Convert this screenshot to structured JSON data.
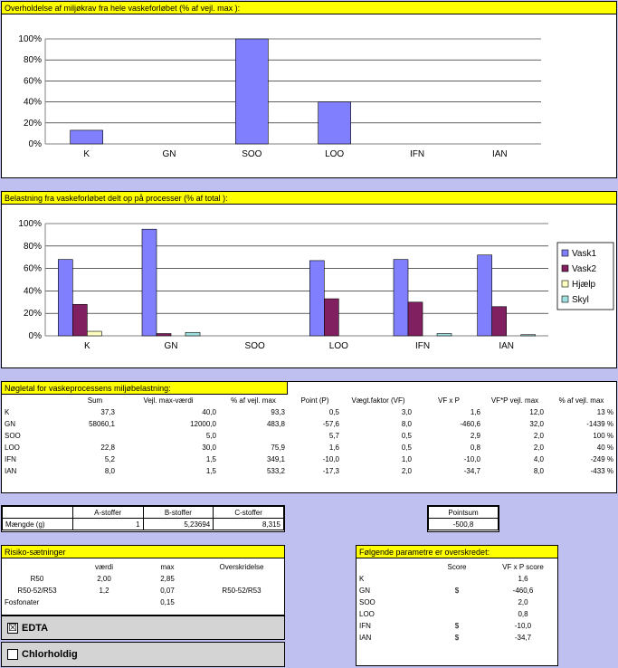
{
  "chart1": {
    "title": "Overholdelse af miljøkrav fra hele vaskeforløbet (% af vejl. max ):"
  },
  "chart2": {
    "title": "Belastning fra vaskeforløbet delt op på processer (% af total ):"
  },
  "chart_data": [
    {
      "type": "bar",
      "title": "Overholdelse af miljøkrav fra hele vaskeforløbet (% af vejl. max ):",
      "categories": [
        "K",
        "GN",
        "SOO",
        "LOO",
        "IFN",
        "IAN"
      ],
      "values": [
        13,
        0,
        100,
        40,
        0,
        0
      ],
      "ylim": [
        0,
        100
      ],
      "yticks": [
        "0%",
        "20%",
        "40%",
        "60%",
        "80%",
        "100%"
      ],
      "color": "#8080ff",
      "grid": true
    },
    {
      "type": "bar",
      "title": "Belastning fra vaskeforløbet delt op på processer (% af total ):",
      "categories": [
        "K",
        "GN",
        "SOO",
        "LOO",
        "IFN",
        "IAN"
      ],
      "ylim": [
        0,
        100
      ],
      "yticks": [
        "0%",
        "20%",
        "40%",
        "60%",
        "80%",
        "100%"
      ],
      "legend": "right",
      "grid": true,
      "series": [
        {
          "name": "Vask1",
          "color": "#8080ff",
          "values": [
            68,
            95,
            0,
            67,
            68,
            72
          ]
        },
        {
          "name": "Vask2",
          "color": "#802060",
          "values": [
            28,
            2,
            0,
            33,
            30,
            26
          ]
        },
        {
          "name": "Hjælp",
          "color": "#ffffc0",
          "values": [
            4,
            0,
            0,
            0,
            0,
            0
          ]
        },
        {
          "name": "Skyl",
          "color": "#a0e0e0",
          "values": [
            0,
            3,
            0,
            0,
            2,
            1
          ]
        }
      ]
    }
  ],
  "noegletal": {
    "title": "Nøgletal for vaskeprocessens miljøbelastning:",
    "headers": [
      "",
      "Sum",
      "Vejl. max-værdi",
      "% af vejl. max",
      "Point (P)",
      "Vægt.faktor (VF)",
      "VF x P",
      "VF*P vejl. max",
      "% af vejl. max"
    ],
    "rows": [
      [
        "K",
        "37,3",
        "40,0",
        "93,3",
        "0,5",
        "3,0",
        "1,6",
        "12,0",
        "13 %"
      ],
      [
        "GN",
        "58060,1",
        "12000,0",
        "483,8",
        "-57,6",
        "8,0",
        "-460,6",
        "32,0",
        "-1439 %"
      ],
      [
        "SOO",
        "",
        "5,0",
        "",
        "5,7",
        "0,5",
        "2,9",
        "2,0",
        "100 %"
      ],
      [
        "LOO",
        "22,8",
        "30,0",
        "75,9",
        "1,6",
        "0,5",
        "0,8",
        "2,0",
        "40 %"
      ],
      [
        "IFN",
        "5,2",
        "1,5",
        "349,1",
        "-10,0",
        "1,0",
        "-10,0",
        "4,0",
        "-249 %"
      ],
      [
        "IAN",
        "8,0",
        "1,5",
        "533,2",
        "-17,3",
        "2,0",
        "-34,7",
        "8,0",
        "-433 %"
      ]
    ]
  },
  "stoffer": {
    "headers": [
      "",
      "A-stoffer",
      "B-stoffer",
      "C-stoffer"
    ],
    "row_label": "Mængde (g)",
    "values": [
      "1",
      "5,23694",
      "8,315"
    ]
  },
  "pointsum": {
    "label": "Pointsum",
    "value": "-500,8"
  },
  "risiko": {
    "title": "Risiko-sætninger",
    "headers": [
      "",
      "værdi",
      "max",
      "Overskridelse"
    ],
    "rows": [
      [
        "R50",
        "2,00",
        "2,85",
        ""
      ],
      [
        "R50-52/R53",
        "1,2",
        "0,07",
        "R50-52/R53"
      ],
      [
        "Fosfonater",
        "",
        "0,15",
        ""
      ]
    ]
  },
  "checkboxes": [
    {
      "label": "EDTA",
      "checked": true,
      "mark": "☒"
    },
    {
      "label": "Chlorholdig",
      "checked": false,
      "mark": ""
    }
  ],
  "overskredet": {
    "title": "Følgende parametre er overskredet:",
    "headers": [
      "",
      "Score",
      "VF x P score"
    ],
    "rows": [
      [
        "K",
        "",
        "1,6"
      ],
      [
        "GN",
        "$",
        "-460,6"
      ],
      [
        "SOO",
        "",
        "2,0"
      ],
      [
        "LOO",
        "",
        "0,8"
      ],
      [
        "IFN",
        "$",
        "-10,0"
      ],
      [
        "IAN",
        "$",
        "-34,7"
      ]
    ]
  }
}
